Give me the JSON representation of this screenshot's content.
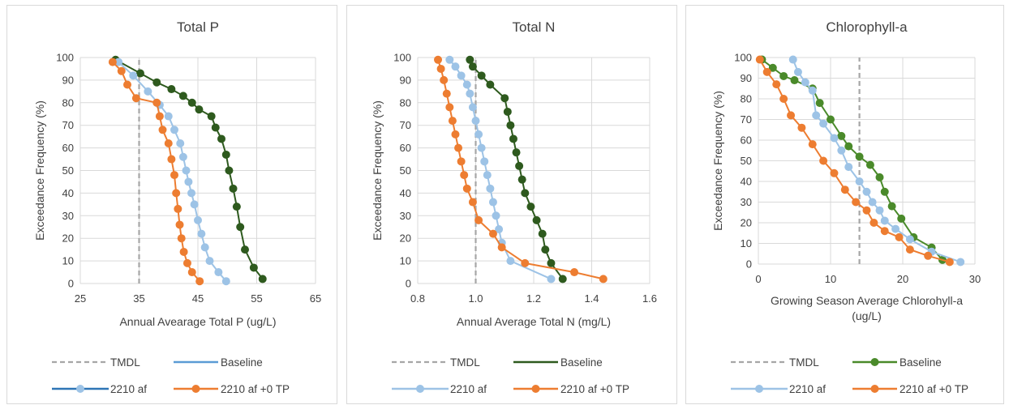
{
  "chart_data": [
    {
      "type": "line",
      "title": "Total P",
      "xlabel": "Annual Avearage Total P (ug/L)",
      "ylabel": "Exceedance Frequency (%)",
      "xlim": [
        25,
        65
      ],
      "ylim": [
        0,
        100
      ],
      "xticks": [
        "25",
        "35",
        "45",
        "55",
        "65"
      ],
      "yticks": [
        "0",
        "10",
        "20",
        "30",
        "40",
        "50",
        "60",
        "70",
        "80",
        "90",
        "100"
      ],
      "grid": true,
      "legend_position": "bottom",
      "tmdl": 35,
      "series": [
        {
          "name": "TMDL",
          "color": "#a6a6a6",
          "style": "dashed",
          "x": [
            35,
            35
          ],
          "y": [
            0,
            100
          ]
        },
        {
          "name": "Baseline",
          "color": "#2e5a1e",
          "marker": "circle",
          "x": [
            31,
            35.2,
            38,
            40.5,
            42.5,
            44,
            45.2,
            47.3,
            48,
            49,
            49.8,
            50.3,
            51,
            51.6,
            52.2,
            53,
            54.5,
            56
          ],
          "y": [
            99,
            93,
            89,
            86,
            83,
            80,
            77,
            74,
            69,
            64,
            57,
            50,
            42,
            34,
            25,
            15,
            7,
            2
          ]
        },
        {
          "name": "2210 af",
          "color": "#9dc3e6",
          "marker": "circle",
          "x": [
            31.5,
            34,
            36.5,
            38.5,
            40,
            41,
            42,
            42.5,
            43,
            43.4,
            43.9,
            44.4,
            45,
            45.6,
            46.2,
            47,
            48.5,
            49.8
          ],
          "y": [
            98,
            92,
            85,
            79,
            74,
            68,
            62,
            56,
            50,
            45,
            40,
            35,
            28,
            22,
            16,
            10,
            5,
            1
          ]
        },
        {
          "name": "2210 af +0 TP",
          "color": "#ed7d31",
          "marker": "circle",
          "x": [
            30.5,
            32,
            33,
            34.5,
            38,
            38.5,
            39,
            40,
            40.5,
            41,
            41.3,
            41.6,
            41.9,
            42.2,
            42.6,
            43.2,
            44,
            45.3
          ],
          "y": [
            98,
            94,
            88,
            82,
            80,
            74,
            68,
            62,
            55,
            48,
            40,
            33,
            26,
            20,
            14,
            9,
            5,
            1
          ]
        }
      ],
      "legend": [
        {
          "name": "TMDL",
          "color": "#a6a6a6",
          "style": "dashed"
        },
        {
          "name": "Baseline",
          "color": "#5b9bd5",
          "style": "solid"
        },
        {
          "name": "2210 af",
          "color": "#2e75b6",
          "style": "marker",
          "marker_color": "#9dc3e6"
        },
        {
          "name": "2210 af +0 TP",
          "color": "#ed7d31",
          "style": "marker",
          "marker_color": "#ed7d31"
        }
      ]
    },
    {
      "type": "line",
      "title": "Total N",
      "xlabel": "Annual Average Total N (mg/L)",
      "ylabel": "Exceedance Frequency (%)",
      "xlim": [
        0.8,
        1.6
      ],
      "ylim": [
        0,
        100
      ],
      "xticks": [
        "0.8",
        "1.0",
        "1.2",
        "1.4",
        "1.6"
      ],
      "yticks": [
        "0",
        "10",
        "20",
        "30",
        "40",
        "50",
        "60",
        "70",
        "80",
        "90",
        "100"
      ],
      "grid": true,
      "legend_position": "bottom",
      "tmdl": 1.0,
      "series": [
        {
          "name": "TMDL",
          "color": "#a6a6a6",
          "style": "dashed",
          "x": [
            1.0,
            1.0
          ],
          "y": [
            0,
            100
          ]
        },
        {
          "name": "Baseline",
          "color": "#2e5a1e",
          "marker": "circle",
          "x": [
            0.98,
            0.99,
            1.02,
            1.05,
            1.1,
            1.11,
            1.12,
            1.13,
            1.14,
            1.15,
            1.16,
            1.17,
            1.19,
            1.21,
            1.23,
            1.24,
            1.26,
            1.3
          ],
          "y": [
            99,
            96,
            92,
            88,
            82,
            76,
            70,
            64,
            58,
            52,
            46,
            40,
            34,
            28,
            22,
            15,
            9,
            2
          ]
        },
        {
          "name": "2210 af",
          "color": "#9dc3e6",
          "marker": "circle",
          "x": [
            0.91,
            0.93,
            0.95,
            0.97,
            0.98,
            0.99,
            1.0,
            1.01,
            1.02,
            1.03,
            1.04,
            1.05,
            1.06,
            1.07,
            1.08,
            1.09,
            1.12,
            1.26
          ],
          "y": [
            99,
            96,
            92,
            88,
            84,
            78,
            72,
            66,
            60,
            54,
            48,
            42,
            36,
            30,
            24,
            18,
            10,
            2
          ]
        },
        {
          "name": "2210 af +0 TP",
          "color": "#ed7d31",
          "marker": "circle",
          "x": [
            0.87,
            0.88,
            0.89,
            0.9,
            0.91,
            0.92,
            0.93,
            0.94,
            0.95,
            0.96,
            0.97,
            0.99,
            1.01,
            1.06,
            1.09,
            1.17,
            1.34,
            1.44
          ],
          "y": [
            99,
            95,
            90,
            84,
            78,
            72,
            66,
            60,
            54,
            48,
            42,
            36,
            28,
            22,
            16,
            9,
            5,
            2
          ]
        }
      ],
      "legend": [
        {
          "name": "TMDL",
          "color": "#a6a6a6",
          "style": "dashed"
        },
        {
          "name": "Baseline",
          "color": "#2e5a1e",
          "style": "solid"
        },
        {
          "name": "2210 af",
          "color": "#9dc3e6",
          "style": "marker",
          "marker_color": "#9dc3e6"
        },
        {
          "name": "2210 af +0 TP",
          "color": "#ed7d31",
          "style": "marker",
          "marker_color": "#ed7d31"
        }
      ]
    },
    {
      "type": "line",
      "title": "Chlorophyll-a",
      "xlabel": "Growing Season Average Chlorohyll-a (ug/L)",
      "ylabel": "Exceedance Frequency (%)",
      "xlim": [
        0,
        30
      ],
      "ylim": [
        0,
        100
      ],
      "xticks": [
        "0",
        "10",
        "20",
        "30"
      ],
      "yticks": [
        "0",
        "10",
        "20",
        "30",
        "40",
        "50",
        "60",
        "70",
        "80",
        "90",
        "100"
      ],
      "grid": true,
      "legend_position": "bottom",
      "tmdl": 14,
      "series": [
        {
          "name": "TMDL",
          "color": "#a6a6a6",
          "style": "dashed",
          "x": [
            14,
            14
          ],
          "y": [
            0,
            100
          ]
        },
        {
          "name": "Baseline",
          "color": "#4a8a2a",
          "marker": "circle",
          "x": [
            0.5,
            2,
            3.5,
            5,
            7.5,
            8.5,
            10,
            11.5,
            12.5,
            14,
            15.5,
            16.8,
            17.5,
            18.5,
            19.8,
            21.5,
            24,
            25.5
          ],
          "y": [
            99,
            95,
            91,
            89,
            85,
            78,
            70,
            62,
            57,
            52,
            48,
            42,
            35,
            28,
            22,
            13,
            8,
            2
          ]
        },
        {
          "name": "2210 af",
          "color": "#9dc3e6",
          "marker": "circle",
          "x": [
            4.8,
            5.5,
            6.5,
            7.5,
            8,
            9,
            10.5,
            11.5,
            12.5,
            14,
            15,
            15.8,
            16.8,
            17.5,
            19,
            21,
            24,
            28
          ],
          "y": [
            99,
            93,
            88,
            84,
            72,
            68,
            61,
            55,
            47,
            40,
            35,
            30,
            26,
            21,
            17,
            12,
            6,
            1
          ]
        },
        {
          "name": "2210 af +0 TP",
          "color": "#ed7d31",
          "marker": "circle",
          "x": [
            0.2,
            1.2,
            2.5,
            3.5,
            4.5,
            6,
            7.5,
            9,
            10.5,
            12,
            13.5,
            15,
            16,
            17.5,
            19.5,
            21,
            23.5,
            26.5
          ],
          "y": [
            99,
            93,
            87,
            80,
            72,
            66,
            58,
            50,
            44,
            36,
            30,
            26,
            20,
            16,
            13,
            7,
            4,
            1
          ]
        }
      ],
      "legend": [
        {
          "name": "TMDL",
          "color": "#a6a6a6",
          "style": "dashed"
        },
        {
          "name": "Baseline",
          "color": "#4a8a2a",
          "style": "marker",
          "marker_color": "#4a8a2a"
        },
        {
          "name": "2210 af",
          "color": "#9dc3e6",
          "style": "marker",
          "marker_color": "#9dc3e6"
        },
        {
          "name": "2210 af +0 TP",
          "color": "#ed7d31",
          "style": "marker",
          "marker_color": "#ed7d31"
        }
      ]
    }
  ]
}
